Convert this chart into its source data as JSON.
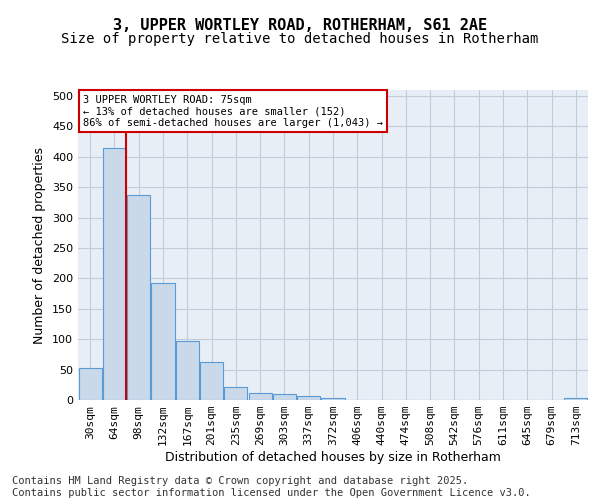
{
  "title_line1": "3, UPPER WORTLEY ROAD, ROTHERHAM, S61 2AE",
  "title_line2": "Size of property relative to detached houses in Rotherham",
  "xlabel": "Distribution of detached houses by size in Rotherham",
  "ylabel": "Number of detached properties",
  "bar_values": [
    53,
    415,
    338,
    193,
    97,
    63,
    22,
    12,
    10,
    6,
    3,
    0,
    0,
    0,
    0,
    0,
    0,
    0,
    0,
    0,
    3
  ],
  "categories": [
    "30sqm",
    "64sqm",
    "98sqm",
    "132sqm",
    "167sqm",
    "201sqm",
    "235sqm",
    "269sqm",
    "303sqm",
    "337sqm",
    "372sqm",
    "406sqm",
    "440sqm",
    "474sqm",
    "508sqm",
    "542sqm",
    "576sqm",
    "611sqm",
    "645sqm",
    "679sqm",
    "713sqm"
  ],
  "bar_color": "#c9d9ea",
  "bar_edge_color": "#5b9bd5",
  "vline_color": "#cc0000",
  "annotation_box_text": "3 UPPER WORTLEY ROAD: 75sqm\n← 13% of detached houses are smaller (152)\n86% of semi-detached houses are larger (1,043) →",
  "annotation_box_color": "#cc0000",
  "annotation_box_fill": "#ffffff",
  "ylim": [
    0,
    510
  ],
  "yticks": [
    0,
    50,
    100,
    150,
    200,
    250,
    300,
    350,
    400,
    450,
    500
  ],
  "axes_bg_color": "#e8eef5",
  "background_color": "#ffffff",
  "grid_color": "#c0ccd8",
  "footer_text": "Contains HM Land Registry data © Crown copyright and database right 2025.\nContains public sector information licensed under the Open Government Licence v3.0.",
  "title_fontsize": 11,
  "subtitle_fontsize": 10,
  "axis_label_fontsize": 9,
  "tick_fontsize": 8,
  "footer_fontsize": 7.5
}
